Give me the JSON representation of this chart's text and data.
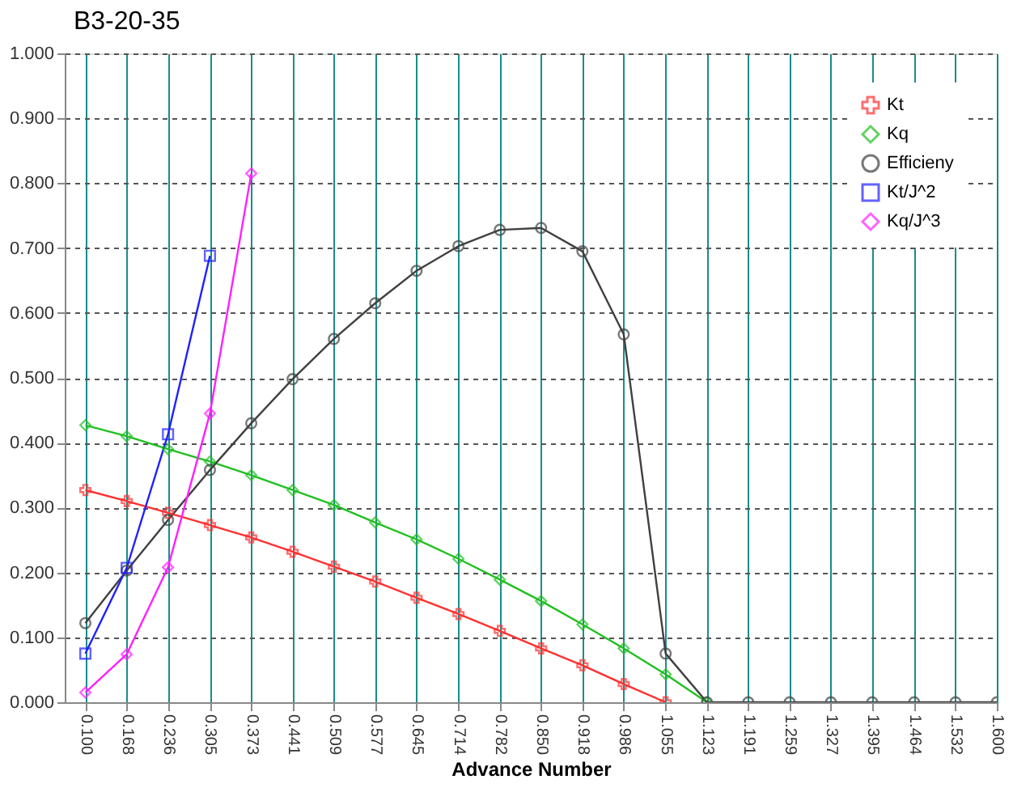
{
  "chart_data": {
    "type": "line",
    "title": "B3-20-35",
    "xlabel": "Advance Number",
    "x": [
      0.1,
      0.168,
      0.236,
      0.305,
      0.373,
      0.441,
      0.509,
      0.577,
      0.645,
      0.714,
      0.782,
      0.85,
      0.918,
      0.986,
      1.055,
      1.123,
      1.191,
      1.259,
      1.327,
      1.395,
      1.464,
      1.532,
      1.6
    ],
    "series": [
      {
        "name": "Kt",
        "color": "#ff3030",
        "marker": "cross",
        "x": [
          0.1,
          0.168,
          0.236,
          0.305,
          0.373,
          0.441,
          0.509,
          0.577,
          0.645,
          0.714,
          0.782,
          0.85,
          0.918,
          0.986,
          1.055
        ],
        "values": [
          0.327,
          0.31,
          0.292,
          0.273,
          0.254,
          0.232,
          0.209,
          0.186,
          0.161,
          0.136,
          0.11,
          0.083,
          0.057,
          0.028,
          0.0
        ]
      },
      {
        "name": "Kq",
        "color": "#20c020",
        "marker": "diamond",
        "x": [
          0.1,
          0.168,
          0.236,
          0.305,
          0.373,
          0.441,
          0.509,
          0.577,
          0.645,
          0.714,
          0.782,
          0.85,
          0.918,
          0.986,
          1.055,
          1.123
        ],
        "values": [
          0.427,
          0.41,
          0.39,
          0.371,
          0.35,
          0.327,
          0.304,
          0.277,
          0.251,
          0.221,
          0.189,
          0.156,
          0.12,
          0.083,
          0.043,
          0.0
        ]
      },
      {
        "name": "Efficieny",
        "color": "#404040",
        "marker": "circle",
        "values": [
          0.122,
          0.203,
          0.281,
          0.358,
          0.43,
          0.498,
          0.56,
          0.615,
          0.665,
          0.703,
          0.728,
          0.731,
          0.695,
          0.567,
          0.075,
          0.0,
          0.0,
          0.0,
          0.0,
          0.0,
          0.0,
          0.0,
          0.0
        ]
      },
      {
        "name": "Kt/J^2",
        "color": "#2020ff",
        "marker": "square",
        "x": [
          0.1,
          0.168,
          0.236,
          0.305
        ],
        "values": [
          0.075,
          0.207,
          0.413,
          0.688
        ]
      },
      {
        "name": "Kq/J^3",
        "color": "#ff20ff",
        "marker": "diamond",
        "x": [
          0.1,
          0.168,
          0.236,
          0.305,
          0.373
        ],
        "values": [
          0.015,
          0.074,
          0.208,
          0.445,
          0.815
        ]
      }
    ],
    "xlim": [
      0.066,
      1.6
    ],
    "xticks": [
      {
        "value": 0.1,
        "label": "0.100"
      },
      {
        "value": 0.168,
        "label": "0.168"
      },
      {
        "value": 0.236,
        "label": "0.236"
      },
      {
        "value": 0.305,
        "label": "0.305"
      },
      {
        "value": 0.373,
        "label": "0.373"
      },
      {
        "value": 0.441,
        "label": "0.441"
      },
      {
        "value": 0.509,
        "label": "0.509"
      },
      {
        "value": 0.577,
        "label": "0.577"
      },
      {
        "value": 0.645,
        "label": "0.645"
      },
      {
        "value": 0.714,
        "label": "0.714"
      },
      {
        "value": 0.782,
        "label": "0.782"
      },
      {
        "value": 0.85,
        "label": "0.850"
      },
      {
        "value": 0.918,
        "label": "0.918"
      },
      {
        "value": 0.986,
        "label": "0.986"
      },
      {
        "value": 1.055,
        "label": "1.055"
      },
      {
        "value": 1.123,
        "label": "1.123"
      },
      {
        "value": 1.191,
        "label": "1.191"
      },
      {
        "value": 1.259,
        "label": "1.259"
      },
      {
        "value": 1.327,
        "label": "1.327"
      },
      {
        "value": 1.395,
        "label": "1.395"
      },
      {
        "value": 1.464,
        "label": "1.464"
      },
      {
        "value": 1.532,
        "label": "1.532"
      },
      {
        "value": 1.6,
        "label": "1.600"
      }
    ],
    "ylim": [
      0,
      1
    ],
    "yticks": [
      {
        "value": 0,
        "label": "0.000"
      },
      {
        "value": 0.1,
        "label": "0.100"
      },
      {
        "value": 0.2,
        "label": "0.200"
      },
      {
        "value": 0.3,
        "label": "0.300"
      },
      {
        "value": 0.4,
        "label": "0.400"
      },
      {
        "value": 0.5,
        "label": "0.500"
      },
      {
        "value": 0.6,
        "label": "0.600"
      },
      {
        "value": 0.7,
        "label": "0.700"
      },
      {
        "value": 0.8,
        "label": "0.800"
      },
      {
        "value": 0.9,
        "label": "0.900"
      },
      {
        "value": 1.0,
        "label": "1.000"
      }
    ],
    "grid": true,
    "legend": "top right",
    "line_style": "solid"
  }
}
